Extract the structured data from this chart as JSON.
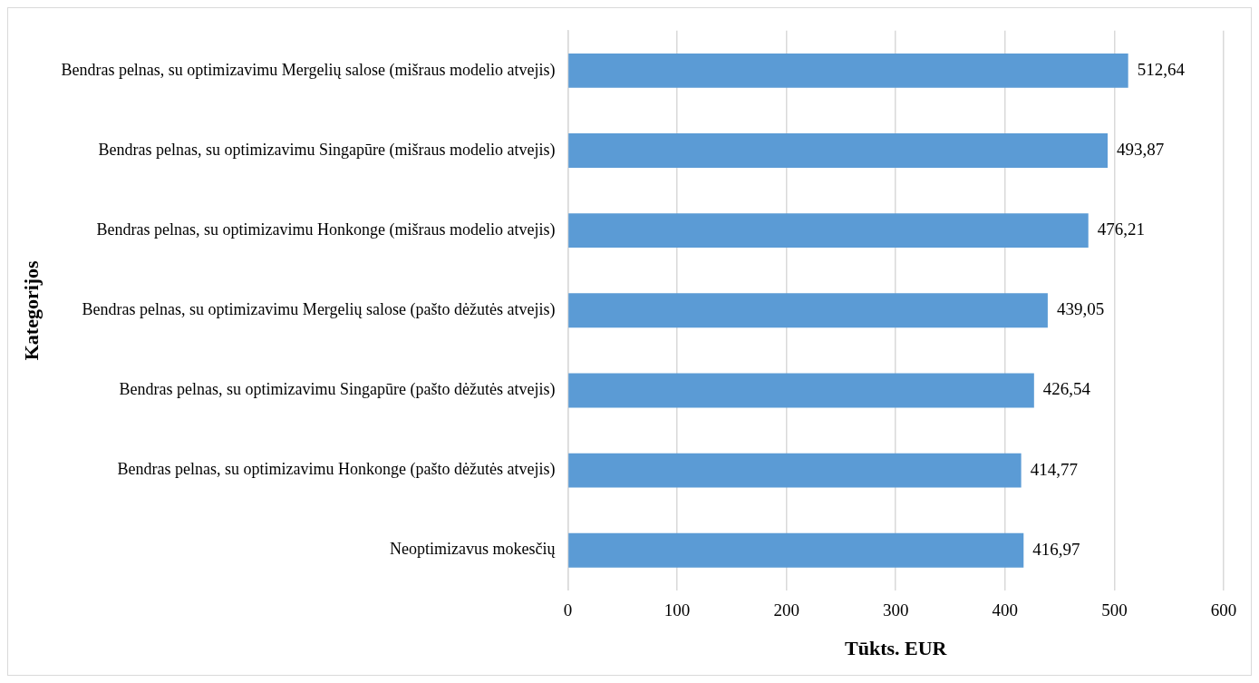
{
  "chart_data": {
    "type": "bar",
    "orientation": "horizontal",
    "xlabel": "Tūkts. EUR",
    "ylabel": "Kategorijos",
    "categories": [
      "Bendras pelnas, su optimizavimu Mergelių salose (mišraus modelio atvejis)",
      "Bendras pelnas, su optimizavimu Singapūre (mišraus modelio atvejis)",
      "Bendras pelnas, su optimizavimu Honkonge (mišraus modelio atvejis)",
      "Bendras pelnas, su optimizavimu Mergelių salose (pašto dėžutės atvejis)",
      "Bendras pelnas, su optimizavimu Singapūre (pašto dėžutės atvejis)",
      "Bendras pelnas, su optimizavimu Honkonge (pašto dėžutės atvejis)",
      "Neoptimizavus mokesčių"
    ],
    "values": [
      512.64,
      493.87,
      476.21,
      439.05,
      426.54,
      414.77,
      416.97
    ],
    "value_labels": [
      "512,64",
      "493,87",
      "476,21",
      "439,05",
      "426,54",
      "414,77",
      "416,97"
    ],
    "color": "#5b9bd5",
    "xlim": [
      0,
      600
    ],
    "xticks": [
      0,
      100,
      200,
      300,
      400,
      500,
      600
    ],
    "grid": "x",
    "legend": false
  }
}
